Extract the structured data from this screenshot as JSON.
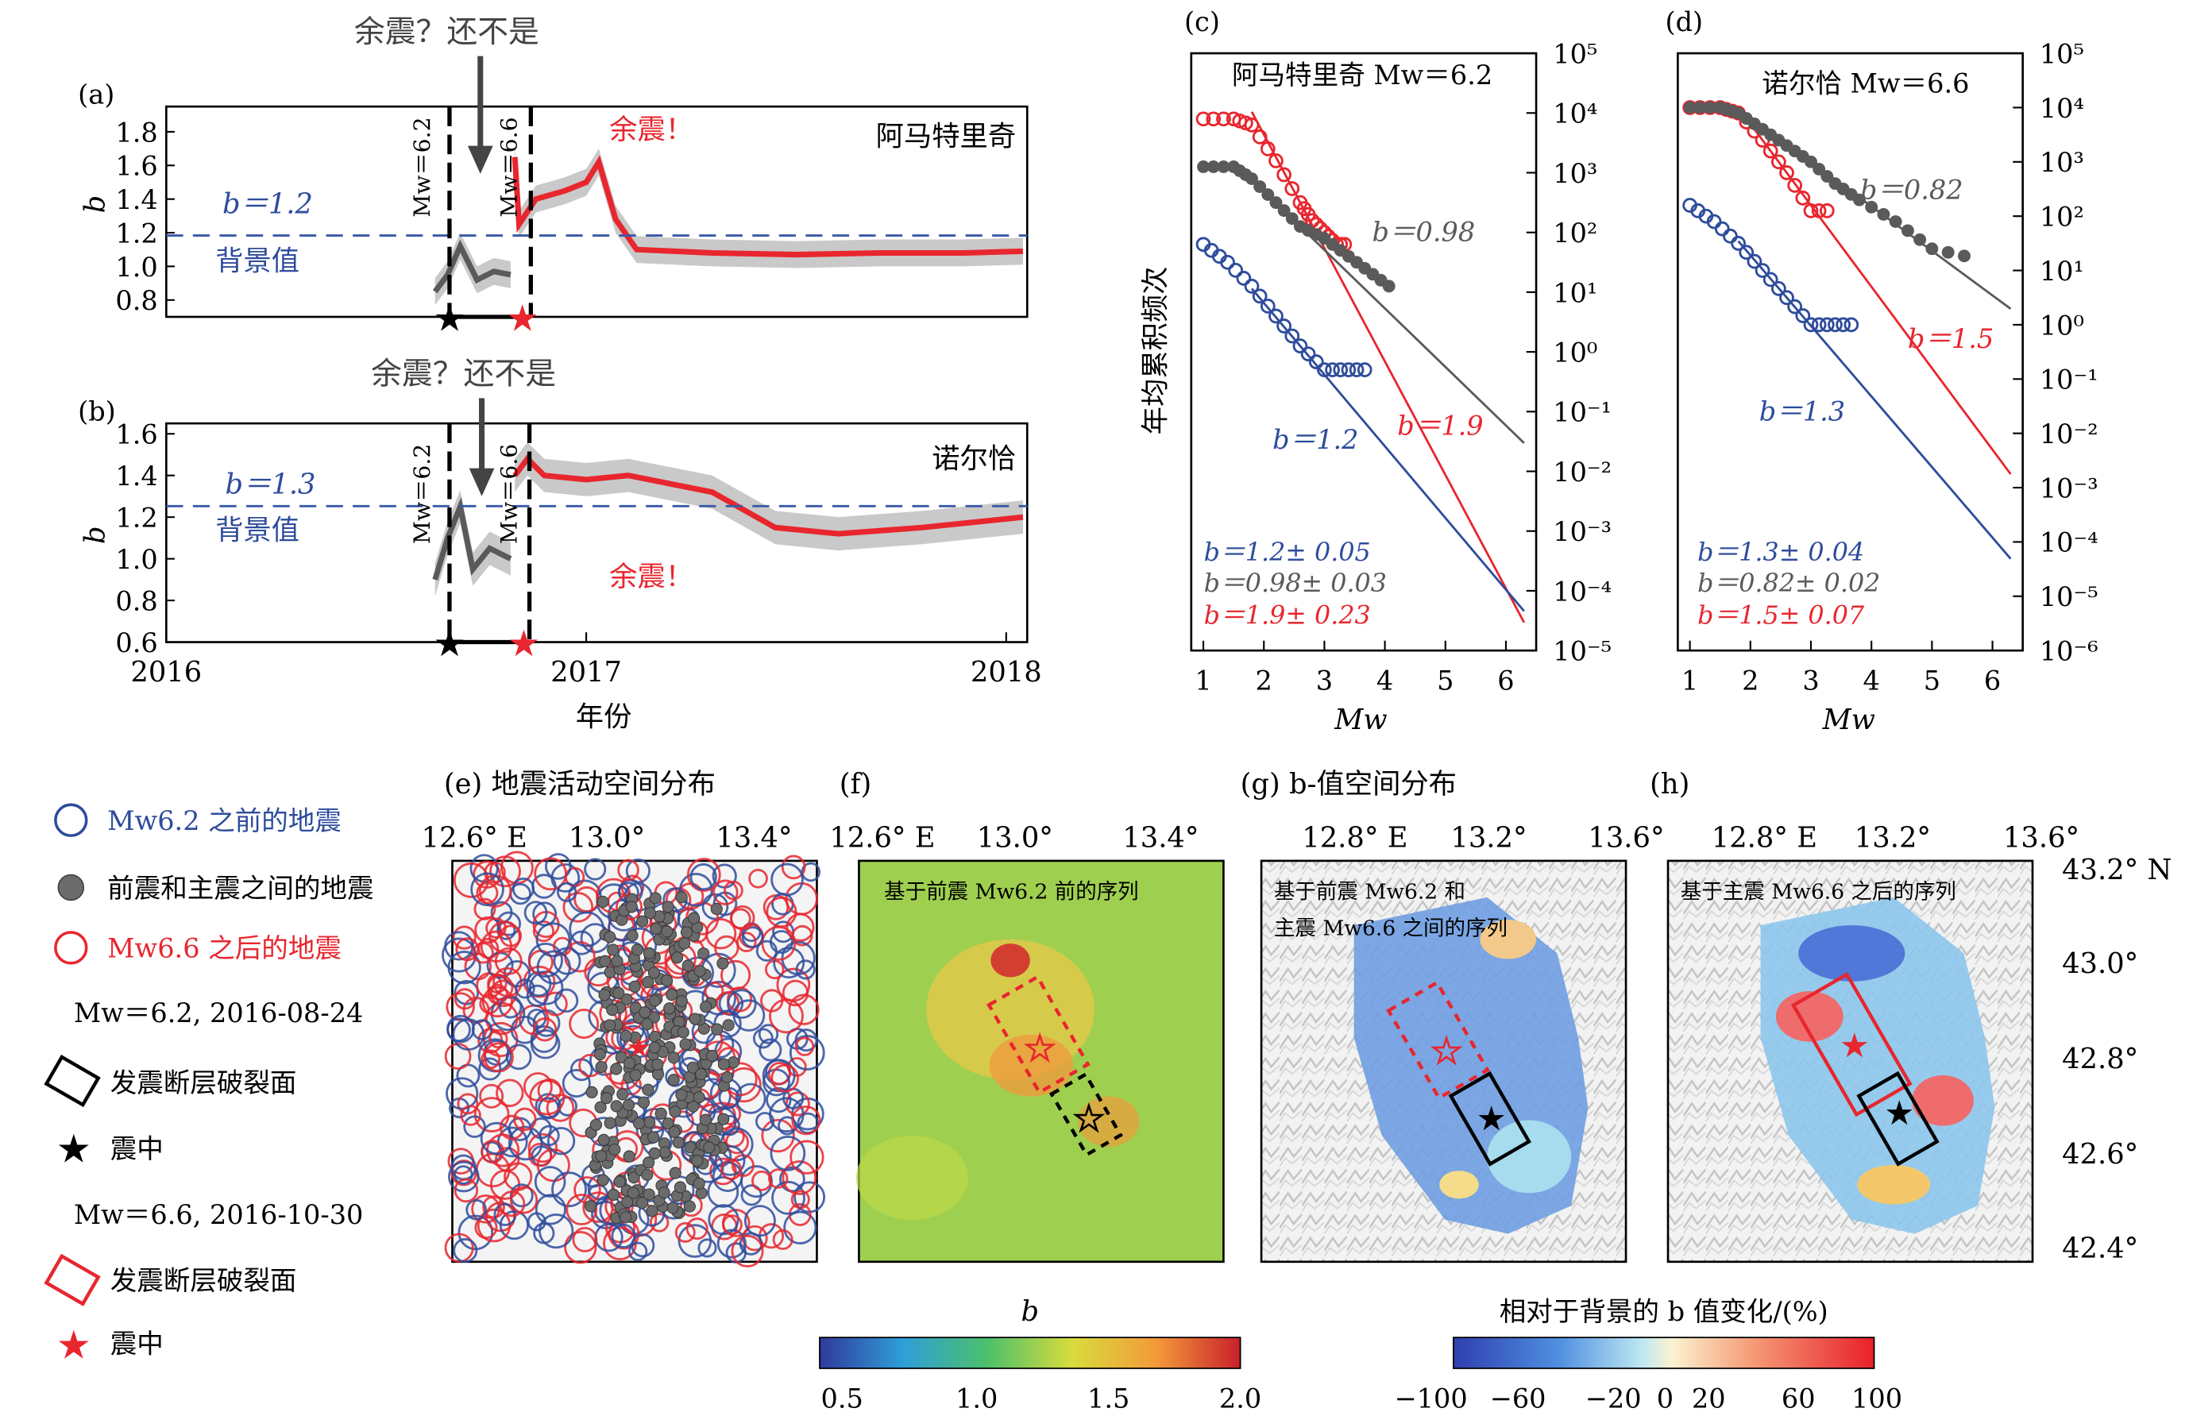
{
  "colors": {
    "blue": "#2e4c9c",
    "red": "#e8262e",
    "gray": "#5a5a5a",
    "band": "#c9c9c9",
    "dash_blue": "#3a5aa8"
  },
  "panel_a": {
    "letter": "(a)",
    "place": "阿马特里奇",
    "question": "余震？还不是",
    "aftershock": "余震！",
    "bg_b": "b＝1.2",
    "bg_label": "背景值",
    "mw1": "Mw＝6.2",
    "mw2": "Mw＝6.6",
    "b_axis": "b",
    "yticks": [
      "1.8",
      "1.6",
      "1.4",
      "1.2",
      "1.0",
      "0.8"
    ]
  },
  "panel_b": {
    "letter": "(b)",
    "place": "诺尔恰",
    "question": "余震？还不是",
    "aftershock": "余震！",
    "bg_b": "b＝1.3",
    "bg_label": "背景值",
    "mw1": "Mw＝6.2",
    "mw2": "Mw＝6.6",
    "b_axis": "b",
    "yticks": [
      "1.6",
      "1.4",
      "1.2",
      "1.0",
      "0.8",
      "0.6"
    ],
    "xticks": [
      "2016",
      "2017",
      "2018"
    ],
    "xlabel": "年份"
  },
  "panel_c": {
    "letter": "(c)",
    "title": "阿马特里奇 Mw＝6.2",
    "ylabel": "年均累积频次",
    "xlabel": "Mw",
    "b_gray": "b＝0.98",
    "b_red": "b＝1.9",
    "b_blue": "b＝1.2",
    "fit_blue": "b＝1.2± 0.05",
    "fit_gray": "b＝0.98± 0.03",
    "fit_red": "b＝1.9± 0.23",
    "xticks": [
      "1",
      "2",
      "3",
      "4",
      "5",
      "6"
    ],
    "yticks": [
      "10⁵",
      "10⁴",
      "10³",
      "10²",
      "10¹",
      "10⁰",
      "10⁻¹",
      "10⁻²",
      "10⁻³",
      "10⁻⁴",
      "10⁻⁵"
    ]
  },
  "panel_d": {
    "letter": "(d)",
    "title": "诺尔恰 Mw＝6.6",
    "xlabel": "Mw",
    "b_gray": "b＝0.82",
    "b_red": "b＝1.5",
    "b_blue": "b＝1.3",
    "fit_blue": "b＝1.3± 0.04",
    "fit_gray": "b＝0.82± 0.02",
    "fit_red": "b＝1.5± 0.07",
    "xticks": [
      "1",
      "2",
      "3",
      "4",
      "5",
      "6"
    ],
    "yticks": [
      "10⁵",
      "10⁴",
      "10³",
      "10²",
      "10¹",
      "10⁰",
      "10⁻¹",
      "10⁻²",
      "10⁻³",
      "10⁻⁴",
      "10⁻⁵",
      "10⁻⁶"
    ]
  },
  "legend": {
    "before": "Mw6.2 之前的地震",
    "between": "前震和主震之间的地震",
    "after": "Mw6.6 之后的地震",
    "ev1": "Mw＝6.2, 2016-08-24",
    "rupture1": "发震断层破裂面",
    "epi1": "震中",
    "ev2": "Mw＝6.6, 2016-10-30",
    "rupture2": "发震断层破裂面",
    "epi2": "震中"
  },
  "maps": {
    "e_title": "(e)  地震活动空间分布",
    "f_title": "(f)",
    "g_title": "(g)   b-值空间分布",
    "h_title": "(h)",
    "ef_lon": [
      "12.6° E",
      "13.0°",
      "13.4°"
    ],
    "gh_lon": [
      "12.8° E",
      "13.2°",
      "13.6°"
    ],
    "lat": [
      "43.2° N",
      "43.0°",
      "42.8°",
      "42.6°",
      "42.4°"
    ],
    "f_note": "基于前震 Mw6.2 前的序列",
    "g_note1": "基于前震 Mw6.2 和",
    "g_note2": "主震 Mw6.6 之间的序列",
    "h_note": "基于主震 Mw6.6 之后的序列"
  },
  "colorbar_b": {
    "title": "b",
    "ticks": [
      "0.5",
      "1.0",
      "1.5",
      "2.0"
    ]
  },
  "colorbar_pct": {
    "title": "相对于背景的 b 值变化/(%)",
    "ticks": [
      "−100",
      "−60",
      "−20",
      "0",
      "20",
      "60",
      "100"
    ]
  },
  "chart_data": [
    {
      "type": "line",
      "name": "a",
      "title": "阿马特里奇",
      "xlabel": "",
      "ylabel": "b",
      "xlim": [
        2016,
        2018.05
      ],
      "ylim": [
        0.7,
        1.95
      ],
      "background_b": 1.2,
      "foreshock_date": 2016.64,
      "mainshock_date": 2016.83,
      "series": [
        {
          "name": "between",
          "x": [
            2016.64,
            2016.67,
            2016.7,
            2016.74,
            2016.78,
            2016.82
          ],
          "y": [
            0.85,
            0.95,
            1.12,
            0.92,
            0.97,
            0.95
          ]
        },
        {
          "name": "after",
          "x": [
            2016.83,
            2016.84,
            2016.88,
            2016.95,
            2017.0,
            2017.03,
            2017.07,
            2017.12,
            2017.3,
            2017.5,
            2017.7,
            2017.9,
            2018.04
          ],
          "y": [
            1.65,
            1.25,
            1.4,
            1.45,
            1.5,
            1.62,
            1.28,
            1.1,
            1.08,
            1.07,
            1.08,
            1.08,
            1.09
          ]
        }
      ]
    },
    {
      "type": "line",
      "name": "b",
      "title": "诺尔恰",
      "xlabel": "年份",
      "ylabel": "b",
      "xlim": [
        2016,
        2018.05
      ],
      "ylim": [
        0.6,
        1.65
      ],
      "background_b": 1.3,
      "foreshock_date": 2016.64,
      "mainshock_date": 2016.83,
      "series": [
        {
          "name": "between",
          "x": [
            2016.64,
            2016.67,
            2016.7,
            2016.73,
            2016.77,
            2016.82
          ],
          "y": [
            0.9,
            1.1,
            1.25,
            0.95,
            1.05,
            1.0
          ]
        },
        {
          "name": "after",
          "x": [
            2016.83,
            2016.86,
            2016.9,
            2017.0,
            2017.1,
            2017.3,
            2017.45,
            2017.6,
            2017.8,
            2018.04
          ],
          "y": [
            1.4,
            1.48,
            1.4,
            1.38,
            1.4,
            1.32,
            1.15,
            1.12,
            1.15,
            1.2
          ]
        }
      ]
    },
    {
      "type": "scatter",
      "name": "c",
      "title": "阿马特里奇 Mw＝6.2",
      "xlabel": "Mw",
      "ylabel": "年均累积频次",
      "xlim": [
        0.8,
        6.5
      ],
      "ylog_range": [
        -5,
        5
      ],
      "series": [
        {
          "name": "red",
          "b": 1.9,
          "x": [
            1.0,
            1.5,
            1.8,
            2.2,
            2.6,
            2.8,
            3.0,
            3.2,
            3.4
          ],
          "log10_y": [
            3.9,
            3.9,
            3.8,
            3.2,
            2.5,
            2.2,
            2.0,
            1.8,
            1.8
          ]
        },
        {
          "name": "gray",
          "b": 0.98,
          "x": [
            1.0,
            1.5,
            1.8,
            2.2,
            2.6,
            3.0,
            3.4,
            3.8,
            4.2
          ],
          "log10_y": [
            3.1,
            3.1,
            2.9,
            2.5,
            2.1,
            1.9,
            1.6,
            1.3,
            1.0
          ]
        },
        {
          "name": "blue",
          "b": 1.2,
          "x": [
            1.0,
            1.4,
            1.8,
            2.2,
            2.6,
            3.0,
            3.4,
            3.8
          ],
          "log10_y": [
            1.8,
            1.5,
            1.1,
            0.6,
            0.1,
            -0.3,
            -0.3,
            -0.3
          ]
        }
      ]
    },
    {
      "type": "scatter",
      "name": "d",
      "title": "诺尔恰 Mw＝6.6",
      "xlabel": "Mw",
      "ylabel": "",
      "xlim": [
        0.8,
        6.5
      ],
      "ylog_range": [
        -6,
        5
      ],
      "series": [
        {
          "name": "red",
          "b": 1.5,
          "x": [
            1.0,
            1.5,
            1.8,
            2.2,
            2.6,
            3.0,
            3.4
          ],
          "log10_y": [
            4.0,
            4.0,
            3.9,
            3.4,
            2.8,
            2.1,
            2.1
          ]
        },
        {
          "name": "gray",
          "b": 0.82,
          "x": [
            1.0,
            1.5,
            1.8,
            2.2,
            2.6,
            3.0,
            3.4,
            3.8,
            4.4,
            5.0,
            5.8
          ],
          "log10_y": [
            4.0,
            4.0,
            3.9,
            3.6,
            3.3,
            3.0,
            2.6,
            2.3,
            1.9,
            1.4,
            1.2
          ]
        },
        {
          "name": "blue",
          "b": 1.3,
          "x": [
            1.0,
            1.4,
            1.8,
            2.2,
            2.6,
            3.0,
            3.4,
            3.8
          ],
          "log10_y": [
            2.2,
            1.9,
            1.5,
            1.0,
            0.5,
            0.0,
            0.0,
            0.0
          ]
        }
      ]
    }
  ]
}
